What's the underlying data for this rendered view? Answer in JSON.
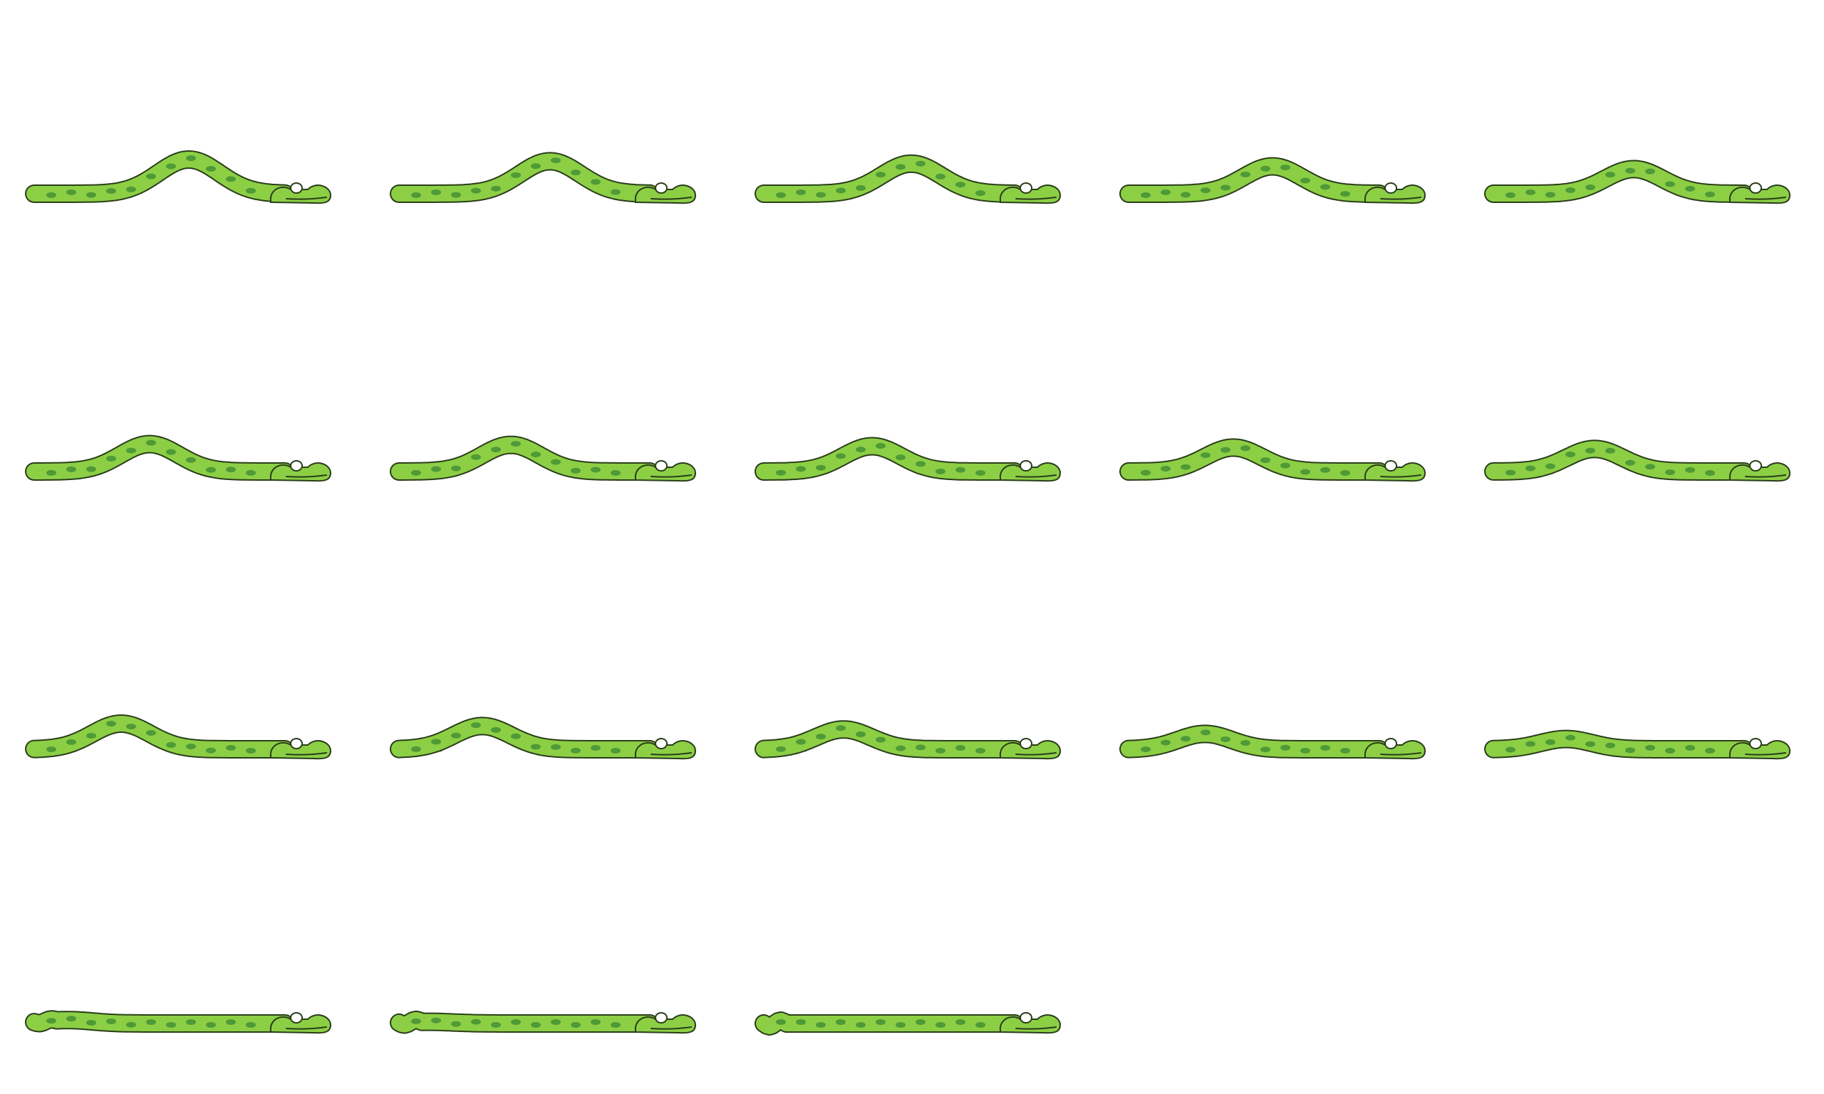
{
  "sprite_sheet": {
    "grid": {
      "columns": 5,
      "rows": 4
    },
    "colors": {
      "background": "#ffffff",
      "body": "#8ccf45",
      "spots": "#4f9a37",
      "outline": "#2a3d1a",
      "eye": "#ffffff"
    },
    "frames": [
      {
        "hump": 1.0
      },
      {
        "hump": 0.95
      },
      {
        "hump": 0.88
      },
      {
        "hump": 0.8
      },
      {
        "hump": 0.72
      },
      {
        "hump": 0.8
      },
      {
        "hump": 0.78
      },
      {
        "hump": 0.74
      },
      {
        "hump": 0.7
      },
      {
        "hump": 0.66
      },
      {
        "hump": 0.75
      },
      {
        "hump": 0.68
      },
      {
        "hump": 0.58
      },
      {
        "hump": 0.45
      },
      {
        "hump": 0.3
      },
      {
        "hump": 0.1
      },
      {
        "hump": 0.05
      },
      {
        "hump": 0.0
      }
    ]
  }
}
